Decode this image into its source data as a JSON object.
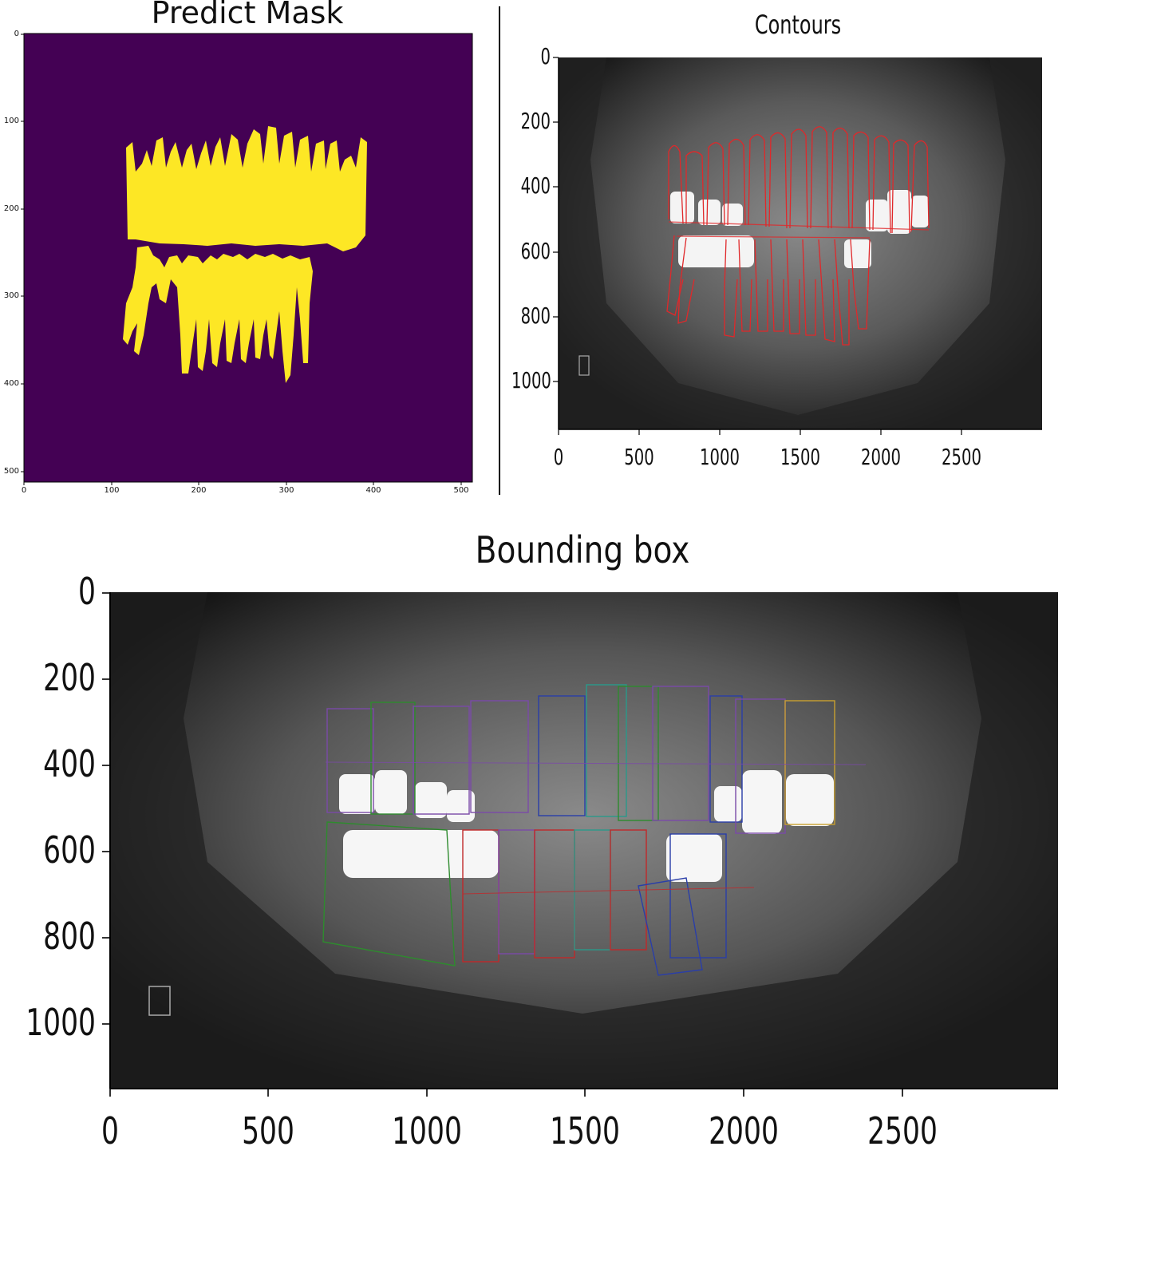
{
  "figures": {
    "mask": {
      "title": "Predict Mask",
      "xticks": [
        "0",
        "100",
        "200",
        "300",
        "400",
        "500"
      ],
      "yticks": [
        "0",
        "100",
        "200",
        "300",
        "400",
        "500"
      ],
      "colors": {
        "background": "#440154",
        "foreground": "#fde725"
      }
    },
    "contours": {
      "title": "Contours",
      "xticks": [
        "0",
        "500",
        "1000",
        "1500",
        "2000",
        "2500"
      ],
      "yticks": [
        "0",
        "200",
        "400",
        "600",
        "800",
        "1000"
      ],
      "colors": {
        "contour": "#e0282a"
      }
    },
    "bbox": {
      "title": "Bounding box",
      "xticks": [
        "0",
        "500",
        "1000",
        "1500",
        "2000",
        "2500"
      ],
      "yticks": [
        "0",
        "200",
        "400",
        "600",
        "800",
        "1000"
      ],
      "colors": {
        "box_palette": [
          "#7a4aa8",
          "#2e8b2e",
          "#2a3ea8",
          "#c0282a",
          "#2a9a8a",
          "#c8a030"
        ]
      }
    }
  }
}
